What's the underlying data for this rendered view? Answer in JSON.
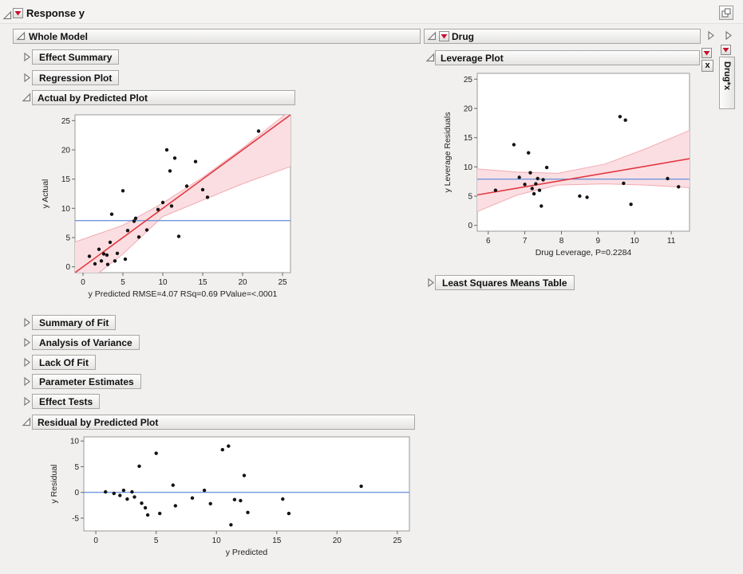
{
  "titlebar": {
    "title": "Response y"
  },
  "sections": {
    "whole_model": "Whole Model",
    "effect_summary": "Effect Summary",
    "regression_plot": "Regression Plot",
    "actual_by_predicted": "Actual by Predicted Plot",
    "summary_of_fit": "Summary of Fit",
    "analysis_of_variance": "Analysis of Variance",
    "lack_of_fit": "Lack Of Fit",
    "parameter_estimates": "Parameter Estimates",
    "effect_tests": "Effect Tests",
    "residual_by_predicted": "Residual by Predicted Plot",
    "drug": "Drug",
    "leverage_plot": "Leverage Plot",
    "least_squares_means_table": "Least Squares Means Table",
    "drug_x_tab": "Drug*x",
    "close_button": "x"
  },
  "colors": {
    "fit_line_red": "#e03a42",
    "mean_line_blue": "#7096dc",
    "band_fill_pink": "#fbdee2",
    "band_stroke_pink": "#f2abb4",
    "red_triangle": "#c8102e"
  },
  "chart_data": [
    {
      "id": "actual_by_predicted",
      "type": "scatter",
      "title": "Actual by Predicted Plot",
      "xlabel": "y Predicted RMSE=4.07 RSq=0.69 PValue=<.0001",
      "ylabel": "y Actual",
      "xlim": [
        -1,
        26
      ],
      "ylim": [
        -1,
        26
      ],
      "xticks": [
        0,
        5,
        10,
        15,
        20,
        25
      ],
      "yticks": [
        0,
        5,
        10,
        15,
        20,
        25
      ],
      "points": [
        [
          0.8,
          1.8
        ],
        [
          1.5,
          0.5
        ],
        [
          2,
          3
        ],
        [
          2.3,
          1
        ],
        [
          2.6,
          2.2
        ],
        [
          3,
          2
        ],
        [
          3.1,
          0.4
        ],
        [
          3.4,
          4.2
        ],
        [
          3.6,
          9
        ],
        [
          4,
          1
        ],
        [
          4.3,
          2.3
        ],
        [
          5,
          13
        ],
        [
          5.3,
          1.3
        ],
        [
          5.6,
          6.2
        ],
        [
          6.4,
          7.8
        ],
        [
          6.6,
          8.3
        ],
        [
          7,
          5.1
        ],
        [
          8,
          6.3
        ],
        [
          9.4,
          9.8
        ],
        [
          10,
          11
        ],
        [
          10.5,
          20
        ],
        [
          10.9,
          16.4
        ],
        [
          11.1,
          10.4
        ],
        [
          11.5,
          18.6
        ],
        [
          12,
          5.2
        ],
        [
          13,
          13.8
        ],
        [
          14.1,
          18
        ],
        [
          15,
          13.2
        ],
        [
          15.6,
          11.9
        ],
        [
          22,
          23.2
        ]
      ],
      "fit_line": {
        "x": [
          -1,
          26
        ],
        "y": [
          -1,
          26
        ],
        "color": "#e03a42"
      },
      "mean_line": {
        "y": 7.9,
        "color": "#7096dc"
      },
      "band": {
        "fill": "#fbdee2",
        "stroke": "#f2abb4",
        "upper": [
          [
            -1.5,
            4.0
          ],
          [
            5,
            7.1
          ],
          [
            10,
            10.9
          ],
          [
            15,
            15.3
          ],
          [
            20,
            20.3
          ],
          [
            26.5,
            27.3
          ]
        ],
        "lower": [
          [
            -1.5,
            -4.8
          ],
          [
            5,
            2.2
          ],
          [
            10,
            8.6
          ],
          [
            15,
            11.4
          ],
          [
            20,
            14.2
          ],
          [
            26.5,
            17.4
          ]
        ]
      }
    },
    {
      "id": "drug_leverage",
      "type": "scatter",
      "title": "Leverage Plot",
      "xlabel": "Drug Leverage, P=0.2284",
      "ylabel": "y Leverage Residuals",
      "xlim": [
        5.7,
        11.5
      ],
      "ylim": [
        -1,
        26
      ],
      "xticks": [
        6,
        7,
        8,
        9,
        10,
        11
      ],
      "yticks": [
        0,
        5,
        10,
        15,
        20,
        25
      ],
      "points": [
        [
          6.2,
          6
        ],
        [
          6.7,
          13.8
        ],
        [
          6.85,
          8.2
        ],
        [
          7,
          7
        ],
        [
          7.1,
          12.4
        ],
        [
          7.15,
          9
        ],
        [
          7.2,
          6.3
        ],
        [
          7.25,
          5.4
        ],
        [
          7.3,
          7.1
        ],
        [
          7.35,
          8
        ],
        [
          7.4,
          6
        ],
        [
          7.45,
          3.3
        ],
        [
          7.5,
          7.8
        ],
        [
          7.6,
          9.9
        ],
        [
          8.5,
          5
        ],
        [
          8.7,
          4.8
        ],
        [
          9.6,
          18.6
        ],
        [
          9.75,
          18
        ],
        [
          9.7,
          7.2
        ],
        [
          9.9,
          3.6
        ],
        [
          10.9,
          8
        ],
        [
          11.2,
          6.6
        ]
      ],
      "fit_line": {
        "x": [
          5.7,
          11.5
        ],
        "y": [
          5.2,
          11.4
        ],
        "color": "#e03a42"
      },
      "mean_line": {
        "y": 7.9,
        "color": "#7096dc"
      },
      "band": {
        "fill": "#fbdee2",
        "stroke": "#f2abb4",
        "upper": [
          [
            5.6,
            9.7
          ],
          [
            6.8,
            9.1
          ],
          [
            7.9,
            8.9
          ],
          [
            9.2,
            10.5
          ],
          [
            10.3,
            13.1
          ],
          [
            11.6,
            16.5
          ]
        ],
        "lower": [
          [
            5.6,
            2.1
          ],
          [
            6.8,
            5.2
          ],
          [
            7.9,
            6.9
          ],
          [
            9.2,
            7.1
          ],
          [
            10.3,
            6.9
          ],
          [
            11.6,
            6.4
          ]
        ]
      }
    },
    {
      "id": "residual_by_predicted",
      "type": "scatter",
      "title": "Residual by Predicted Plot",
      "xlabel": "y Predicted",
      "ylabel": "y Residual",
      "xlim": [
        -1,
        26
      ],
      "ylim": [
        -7.5,
        10.8
      ],
      "xticks": [
        0,
        5,
        10,
        15,
        20,
        25
      ],
      "yticks": [
        -5,
        0,
        5,
        10
      ],
      "points": [
        [
          0.8,
          0.1
        ],
        [
          1.5,
          -0.2
        ],
        [
          2,
          -0.6
        ],
        [
          2.3,
          0.4
        ],
        [
          2.6,
          -1.3
        ],
        [
          3,
          0.1
        ],
        [
          3.2,
          -0.9
        ],
        [
          3.6,
          5.1
        ],
        [
          3.8,
          -2.1
        ],
        [
          4.1,
          -3
        ],
        [
          4.3,
          -4.4
        ],
        [
          5,
          7.6
        ],
        [
          5.3,
          -4.1
        ],
        [
          6.4,
          1.4
        ],
        [
          6.6,
          -2.6
        ],
        [
          8,
          -1.1
        ],
        [
          9,
          0.4
        ],
        [
          9.5,
          -2.2
        ],
        [
          10.5,
          8.3
        ],
        [
          11,
          9
        ],
        [
          11.2,
          -6.3
        ],
        [
          11.5,
          -1.4
        ],
        [
          12,
          -1.6
        ],
        [
          12.3,
          3.3
        ],
        [
          12.6,
          -3.9
        ],
        [
          15.5,
          -1.3
        ],
        [
          16,
          -4.1
        ],
        [
          22,
          1.2
        ]
      ],
      "mean_line": {
        "y": 0,
        "color": "#7096dc"
      }
    }
  ]
}
